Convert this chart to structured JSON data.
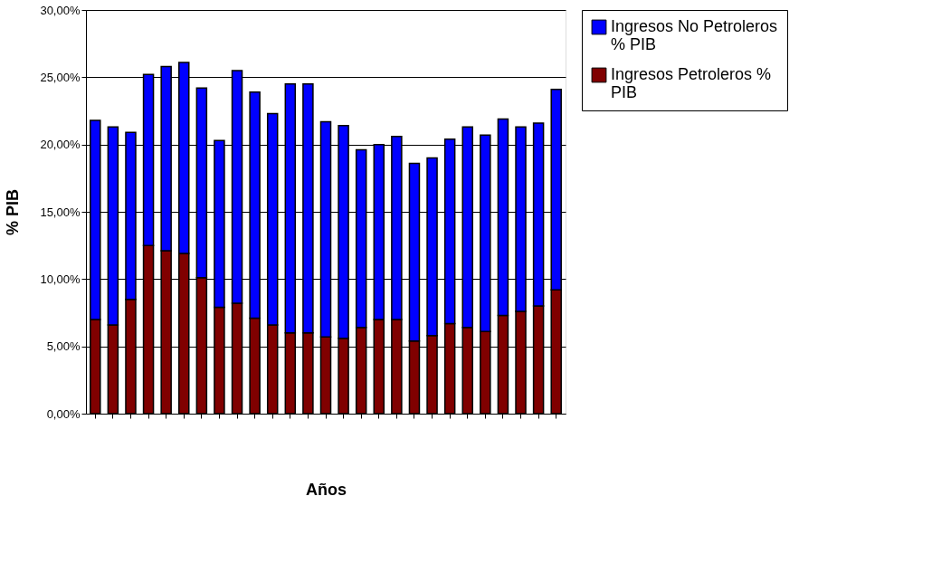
{
  "chart_data": {
    "type": "bar",
    "stacked": true,
    "xlabel": "Años",
    "ylabel": "% PIB",
    "categories": [
      null,
      null,
      null,
      null,
      null,
      null,
      null,
      null,
      null,
      null,
      null,
      null,
      null,
      null,
      null,
      null,
      null,
      null,
      null,
      null,
      null,
      null,
      null,
      null,
      null,
      null,
      null
    ],
    "series": [
      {
        "name": "Ingresos Petroleros % PIB",
        "color": "#800000",
        "values": [
          7.0,
          6.6,
          8.5,
          12.5,
          12.1,
          11.9,
          10.1,
          7.9,
          8.2,
          7.1,
          6.6,
          6.0,
          6.0,
          5.7,
          5.6,
          6.4,
          7.0,
          7.0,
          5.4,
          5.8,
          6.7,
          6.4,
          6.1,
          7.3,
          7.6,
          8.0,
          9.2
        ]
      },
      {
        "name": "Ingresos No Petroleros % PIB",
        "color": "#0000ff",
        "values": [
          14.8,
          14.7,
          12.4,
          12.7,
          13.7,
          14.2,
          14.1,
          12.4,
          17.3,
          16.8,
          15.7,
          18.5,
          18.5,
          16.0,
          15.8,
          13.2,
          13.0,
          13.6,
          13.2,
          13.2,
          13.7,
          14.9,
          14.6,
          14.6,
          13.7,
          13.6,
          14.9
        ]
      }
    ],
    "ylim": [
      0,
      30
    ],
    "yticks": [
      {
        "value": 0,
        "label": "0,00%"
      },
      {
        "value": 5,
        "label": "5,00%"
      },
      {
        "value": 10,
        "label": "10,00%"
      },
      {
        "value": 15,
        "label": "15,00%"
      },
      {
        "value": 20,
        "label": "20,00%"
      },
      {
        "value": 25,
        "label": "25,00%"
      },
      {
        "value": 30,
        "label": "30,00%"
      }
    ],
    "grid": "y",
    "legend": "right",
    "tick_labels": "y"
  }
}
